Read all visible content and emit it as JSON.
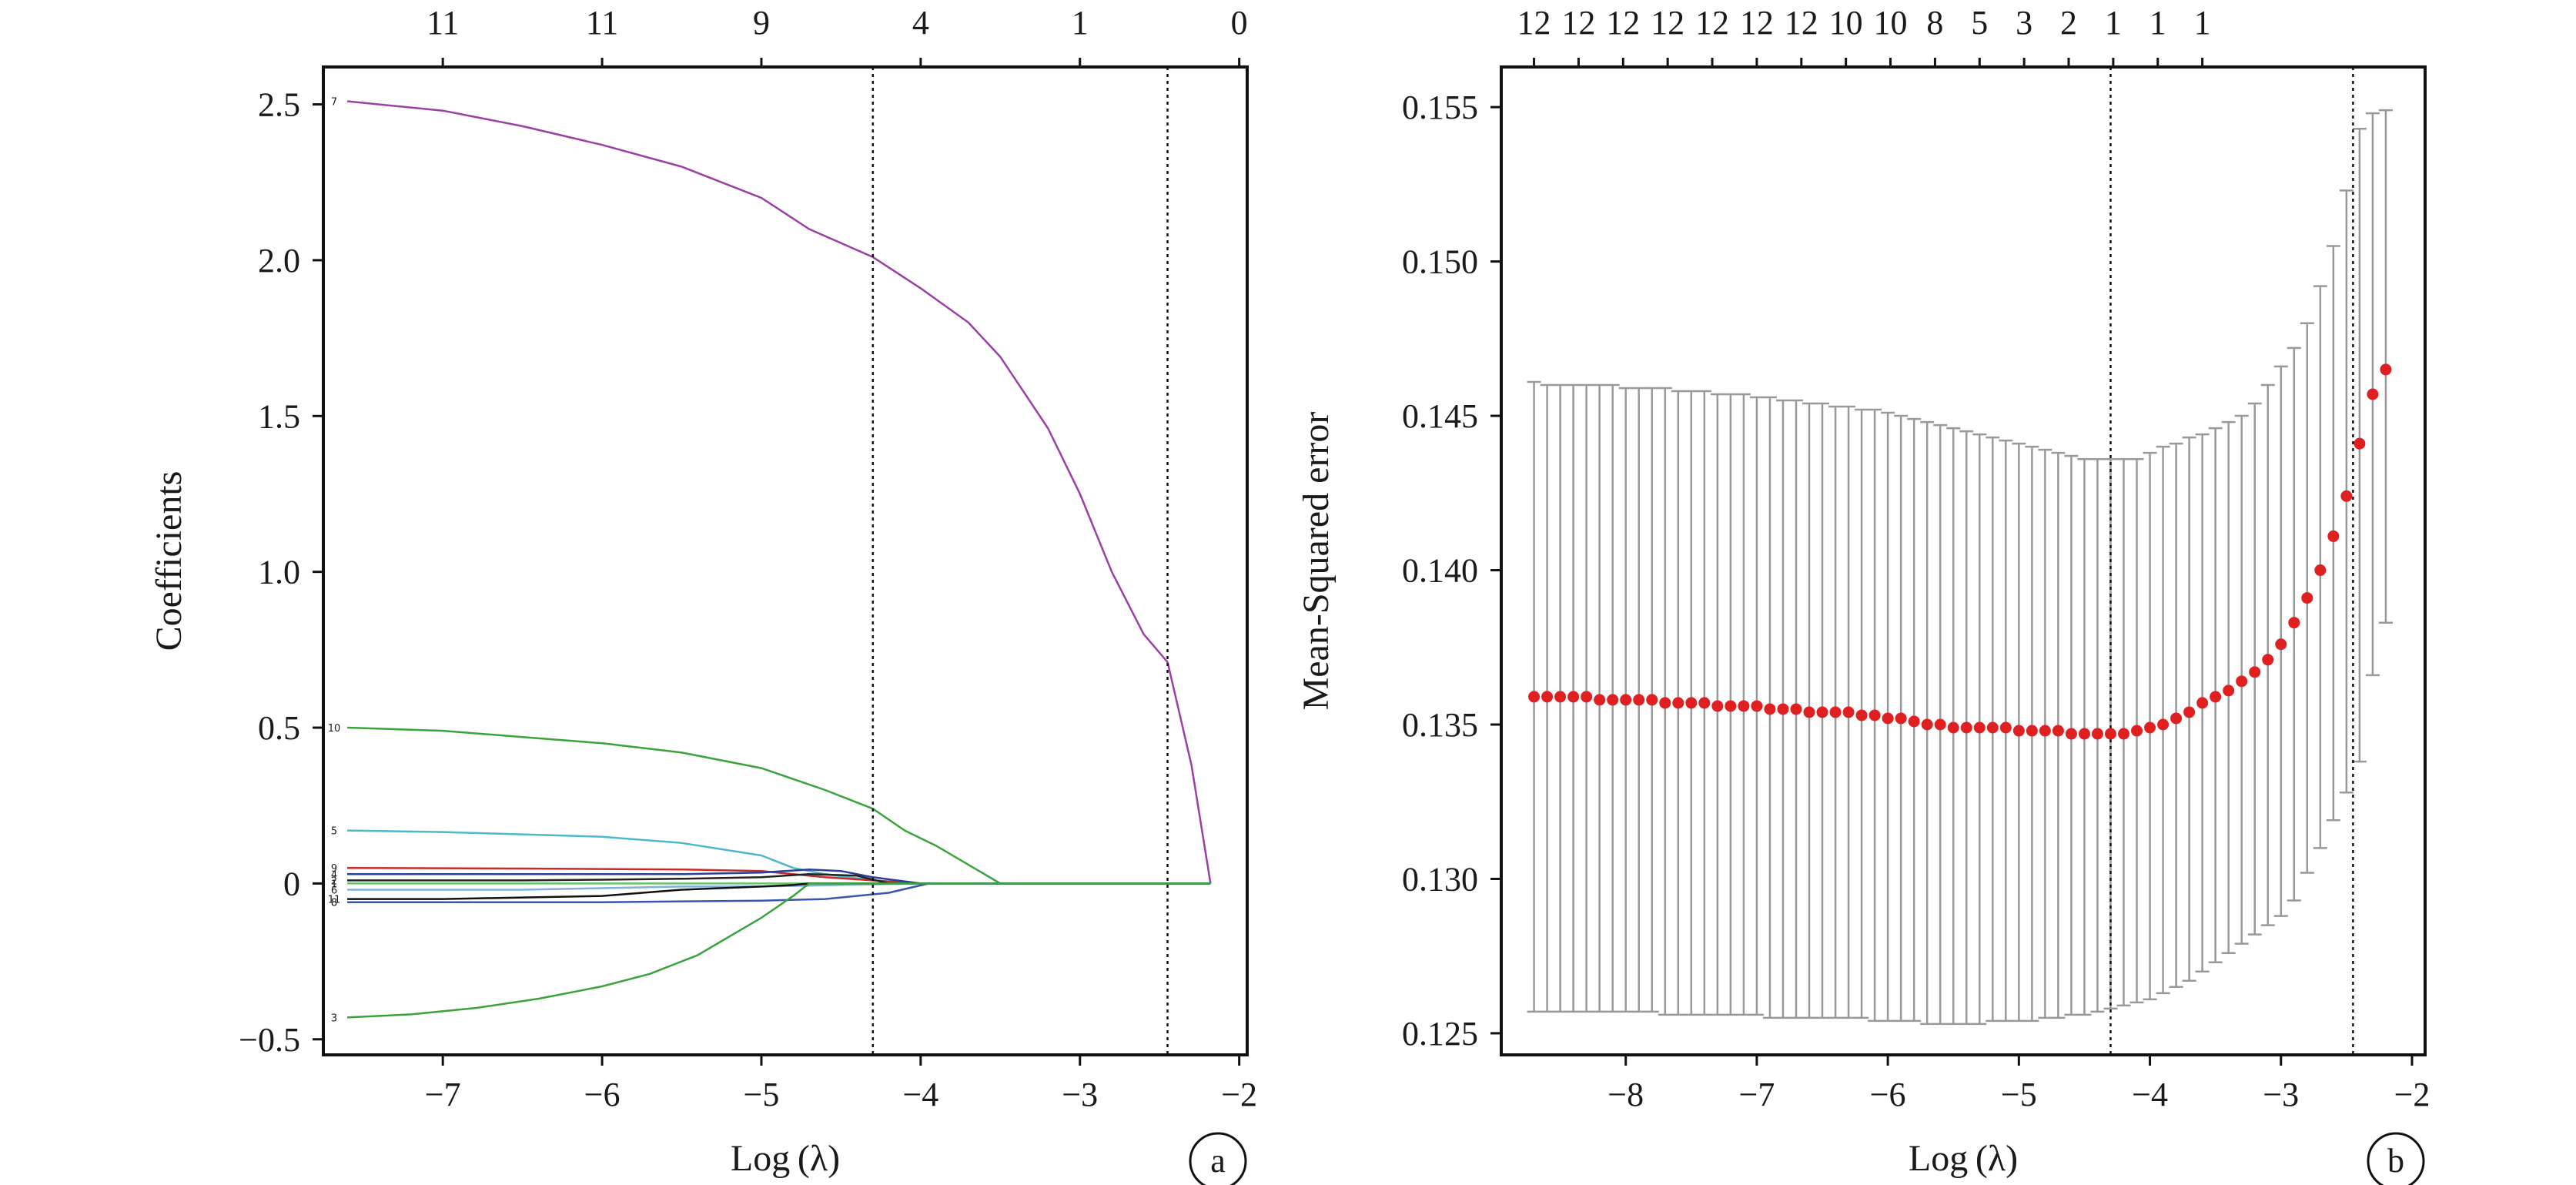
{
  "chart_data": [
    {
      "type": "line",
      "panel_label": "a",
      "xlabel": "Log (λ)",
      "ylabel": "Coefficients",
      "xlim": [
        -7.75,
        -1.95
      ],
      "ylim": [
        -0.55,
        2.62
      ],
      "xticks": [
        -7,
        -6,
        -5,
        -4,
        -3,
        -2
      ],
      "xtick_labels": [
        "−7",
        "−6",
        "−5",
        "−4",
        "−3",
        "−2"
      ],
      "yticks": [
        -0.5,
        0,
        0.5,
        1.0,
        1.5,
        2.0,
        2.5
      ],
      "ytick_labels": [
        "−0.5",
        "0",
        "0.5",
        "1.0",
        "1.5",
        "2.0",
        "2.5"
      ],
      "top_axis": {
        "positions": [
          -7,
          -6,
          -5,
          -4,
          -3,
          -2
        ],
        "labels": [
          "11",
          "11",
          "9",
          "4",
          "1",
          "0"
        ]
      },
      "vlines": [
        -4.3,
        -2.45
      ],
      "grid": false,
      "series": [
        {
          "name": "7",
          "color": "#9b3fa6",
          "x": [
            -7.6,
            -7.0,
            -6.5,
            -6.0,
            -5.5,
            -5.0,
            -4.7,
            -4.3,
            -4.0,
            -3.7,
            -3.5,
            -3.2,
            -3.0,
            -2.8,
            -2.6,
            -2.45,
            -2.3,
            -2.18
          ],
          "y": [
            2.51,
            2.48,
            2.43,
            2.37,
            2.3,
            2.2,
            2.1,
            2.01,
            1.91,
            1.8,
            1.69,
            1.46,
            1.25,
            1.0,
            0.8,
            0.71,
            0.38,
            0.0
          ]
        },
        {
          "name": "10",
          "color": "#3aa33a",
          "x": [
            -7.6,
            -7.0,
            -6.5,
            -6.0,
            -5.5,
            -5.0,
            -4.6,
            -4.3,
            -4.1,
            -3.9,
            -3.7,
            -3.5,
            -2.18
          ],
          "y": [
            0.5,
            0.49,
            0.47,
            0.45,
            0.42,
            0.37,
            0.3,
            0.24,
            0.17,
            0.12,
            0.06,
            0.0,
            0.0
          ]
        },
        {
          "name": "5",
          "color": "#4cb8cc",
          "x": [
            -7.6,
            -7.0,
            -6.0,
            -5.5,
            -5.0,
            -4.8,
            -4.6,
            -4.3,
            -4.0,
            -2.18
          ],
          "y": [
            0.17,
            0.165,
            0.15,
            0.13,
            0.09,
            0.05,
            0.03,
            0.01,
            0.0,
            0.0
          ]
        },
        {
          "name": "9",
          "color": "#cc2a2a",
          "x": [
            -7.6,
            -6.5,
            -5.5,
            -5.0,
            -4.6,
            -4.3,
            -4.0,
            -2.18
          ],
          "y": [
            0.05,
            0.048,
            0.045,
            0.04,
            0.02,
            0.01,
            0.0,
            0.0
          ]
        },
        {
          "name": "4",
          "color": "#2a3f99",
          "x": [
            -7.6,
            -6.5,
            -5.5,
            -5.0,
            -4.7,
            -4.5,
            -4.3,
            -4.0,
            -2.18
          ],
          "y": [
            0.03,
            0.03,
            0.03,
            0.035,
            0.045,
            0.04,
            0.02,
            0.0,
            0.0
          ]
        },
        {
          "name": "2",
          "color": "#222222",
          "x": [
            -7.6,
            -6.5,
            -6.0,
            -5.5,
            -5.0,
            -4.7,
            -4.4,
            -4.2,
            -2.18
          ],
          "y": [
            0.01,
            0.01,
            0.012,
            0.015,
            0.02,
            0.03,
            0.025,
            0.0,
            0.0
          ]
        },
        {
          "name": "1",
          "color": "#66c266",
          "x": [
            -7.6,
            -6.5,
            -5.5,
            -5.0,
            -4.7,
            -4.3,
            -2.18
          ],
          "y": [
            0.0,
            0.0,
            0.0,
            0.0,
            0.0,
            0.0,
            0.0
          ]
        },
        {
          "name": "6",
          "color": "#7fb0e0",
          "x": [
            -7.6,
            -6.5,
            -5.5,
            -5.0,
            -4.5,
            -4.0,
            -2.18
          ],
          "y": [
            -0.02,
            -0.02,
            -0.01,
            -0.01,
            -0.005,
            0.0,
            0.0
          ]
        },
        {
          "name": "11",
          "color": "#111111",
          "x": [
            -7.6,
            -7.0,
            -6.5,
            -6.0,
            -5.5,
            -5.0,
            -4.8,
            -4.7,
            -2.18
          ],
          "y": [
            -0.05,
            -0.05,
            -0.045,
            -0.04,
            -0.02,
            -0.01,
            -0.005,
            0.0,
            0.0
          ]
        },
        {
          "name": "8",
          "color": "#3a55b0",
          "x": [
            -7.6,
            -7.0,
            -6.0,
            -5.0,
            -4.6,
            -4.2,
            -3.95,
            -2.18
          ],
          "y": [
            -0.06,
            -0.06,
            -0.06,
            -0.055,
            -0.05,
            -0.03,
            0.0,
            0.0
          ]
        },
        {
          "name": "3",
          "color": "#3aa33a",
          "x": [
            -7.6,
            -7.2,
            -6.8,
            -6.4,
            -6.0,
            -5.7,
            -5.4,
            -5.2,
            -5.0,
            -4.8,
            -4.7,
            -2.18
          ],
          "y": [
            -0.43,
            -0.42,
            -0.4,
            -0.37,
            -0.33,
            -0.29,
            -0.23,
            -0.17,
            -0.11,
            -0.04,
            0.0,
            0.0
          ]
        }
      ]
    },
    {
      "type": "scatter",
      "panel_label": "b",
      "xlabel": "Log (λ)",
      "ylabel": "Mean-Squared error",
      "xlim": [
        -8.95,
        -1.9
      ],
      "ylim": [
        0.1243,
        0.1563
      ],
      "xticks": [
        -8,
        -7,
        -6,
        -5,
        -4,
        -3,
        -2
      ],
      "xtick_labels": [
        "−8",
        "−7",
        "−6",
        "−5",
        "−4",
        "−3",
        "−2"
      ],
      "yticks": [
        0.125,
        0.13,
        0.135,
        0.14,
        0.145,
        0.15,
        0.155
      ],
      "ytick_labels": [
        "0.125",
        "0.130",
        "0.135",
        "0.140",
        "0.145",
        "0.150",
        "0.155"
      ],
      "top_axis": {
        "positions": [
          -8.7,
          -8.36,
          -8.02,
          -7.68,
          -7.34,
          -7.0,
          -6.66,
          -6.32,
          -5.98,
          -5.64,
          -5.3,
          -4.96,
          -4.62,
          -4.28,
          -3.94,
          -3.6
        ],
        "labels": [
          "12",
          "12",
          "12",
          "12",
          "12",
          "12",
          "12",
          "10",
          "10",
          "8",
          "5",
          "3",
          "2",
          "1",
          "1",
          "1"
        ]
      },
      "vlines": [
        -4.3,
        -2.45
      ],
      "grid": false,
      "point_color": "#e02020",
      "errorbar_color": "#999999",
      "points": {
        "x": [
          -8.7,
          -8.6,
          -8.5,
          -8.4,
          -8.3,
          -8.2,
          -8.1,
          -8.0,
          -7.9,
          -7.8,
          -7.7,
          -7.6,
          -7.5,
          -7.4,
          -7.3,
          -7.2,
          -7.1,
          -7.0,
          -6.9,
          -6.8,
          -6.7,
          -6.6,
          -6.5,
          -6.4,
          -6.3,
          -6.2,
          -6.1,
          -6.0,
          -5.9,
          -5.8,
          -5.7,
          -5.6,
          -5.5,
          -5.4,
          -5.3,
          -5.2,
          -5.1,
          -5.0,
          -4.9,
          -4.8,
          -4.7,
          -4.6,
          -4.5,
          -4.4,
          -4.3,
          -4.2,
          -4.1,
          -4.0,
          -3.9,
          -3.8,
          -3.7,
          -3.6,
          -3.5,
          -3.4,
          -3.3,
          -3.2,
          -3.1,
          -3.0,
          -2.9,
          -2.8,
          -2.7,
          -2.6,
          -2.5,
          -2.4,
          -2.3,
          -2.2
        ],
        "y": [
          0.1359,
          0.1359,
          0.1359,
          0.1359,
          0.1359,
          0.1358,
          0.1358,
          0.1358,
          0.1358,
          0.1358,
          0.1357,
          0.1357,
          0.1357,
          0.1357,
          0.1356,
          0.1356,
          0.1356,
          0.1356,
          0.1355,
          0.1355,
          0.1355,
          0.1354,
          0.1354,
          0.1354,
          0.1354,
          0.1353,
          0.1353,
          0.1352,
          0.1352,
          0.1351,
          0.135,
          0.135,
          0.1349,
          0.1349,
          0.1349,
          0.1349,
          0.1349,
          0.1348,
          0.1348,
          0.1348,
          0.1348,
          0.1347,
          0.1347,
          0.1347,
          0.1347,
          0.1347,
          0.1348,
          0.1349,
          0.135,
          0.1352,
          0.1354,
          0.1357,
          0.1359,
          0.1361,
          0.1364,
          0.1367,
          0.1371,
          0.1376,
          0.1383,
          0.1391,
          0.14,
          0.1411,
          0.1424,
          0.1441,
          0.1457,
          0.1465
        ],
        "upper": [
          0.1461,
          0.146,
          0.146,
          0.146,
          0.146,
          0.146,
          0.146,
          0.1459,
          0.1459,
          0.1459,
          0.1459,
          0.1458,
          0.1458,
          0.1458,
          0.1457,
          0.1457,
          0.1457,
          0.1456,
          0.1456,
          0.1455,
          0.1455,
          0.1454,
          0.1454,
          0.1453,
          0.1453,
          0.1452,
          0.1452,
          0.1451,
          0.145,
          0.1449,
          0.1448,
          0.1447,
          0.1446,
          0.1445,
          0.1444,
          0.1443,
          0.1442,
          0.1441,
          0.144,
          0.1439,
          0.1438,
          0.1437,
          0.1436,
          0.1436,
          0.1436,
          0.1436,
          0.1436,
          0.1438,
          0.144,
          0.1441,
          0.1443,
          0.1444,
          0.1446,
          0.1448,
          0.145,
          0.1454,
          0.146,
          0.1466,
          0.1472,
          0.148,
          0.1492,
          0.1505,
          0.1523,
          0.1543,
          0.1548,
          0.1549
        ],
        "lower": [
          0.1257,
          0.1257,
          0.1257,
          0.1257,
          0.1257,
          0.1257,
          0.1257,
          0.1257,
          0.1257,
          0.1257,
          0.1256,
          0.1256,
          0.1256,
          0.1256,
          0.1256,
          0.1256,
          0.1256,
          0.1256,
          0.1255,
          0.1255,
          0.1255,
          0.1255,
          0.1255,
          0.1255,
          0.1255,
          0.1255,
          0.1254,
          0.1254,
          0.1254,
          0.1254,
          0.1253,
          0.1253,
          0.1253,
          0.1253,
          0.1253,
          0.1254,
          0.1254,
          0.1254,
          0.1254,
          0.1255,
          0.1255,
          0.1256,
          0.1256,
          0.1257,
          0.1258,
          0.1259,
          0.126,
          0.1261,
          0.1263,
          0.1265,
          0.1267,
          0.127,
          0.1273,
          0.1276,
          0.1279,
          0.1282,
          0.1285,
          0.1288,
          0.1293,
          0.1302,
          0.131,
          0.1319,
          0.1328,
          0.1338,
          0.1366,
          0.1383
        ]
      }
    }
  ]
}
